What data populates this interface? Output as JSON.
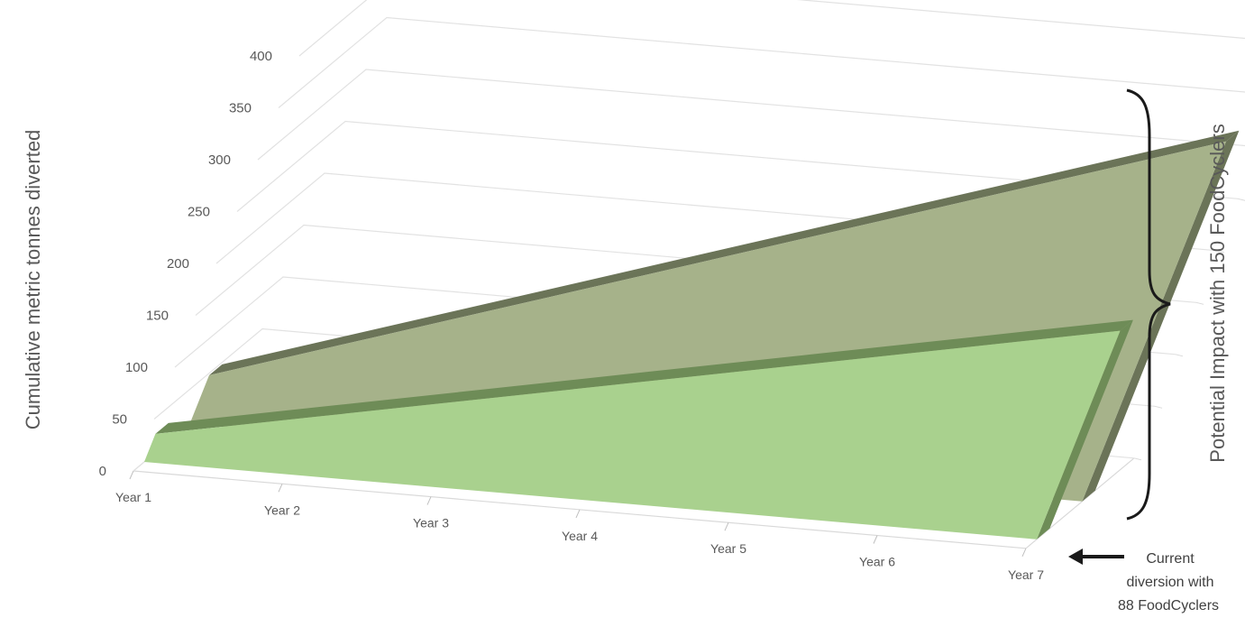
{
  "chart_data": {
    "type": "area",
    "view": "3d",
    "categories": [
      "Year 1",
      "Year 2",
      "Year 3",
      "Year 4",
      "Year 5",
      "Year 6",
      "Year 7"
    ],
    "series": [
      {
        "values": [
          27,
          56,
          85,
          114,
          143,
          172,
          201
        ],
        "color": "#A9D18E",
        "edge_color": "#6E8C57"
      },
      {
        "values": [
          47,
          97,
          147,
          197,
          247,
          297,
          347
        ],
        "color": "#A6B28A",
        "edge_color": "#6B7458"
      }
    ],
    "ylabel": "Cumulative metric tonnes diverted",
    "ylim": [
      0,
      400
    ],
    "yticks": [
      0,
      50,
      100,
      150,
      200,
      250,
      300,
      350,
      400
    ],
    "grid": true,
    "annotations": {
      "potential": "Potential Impact with  150 FoodCyclers",
      "current_lines": [
        "Current",
        "diversion with",
        "88 FoodCyclers"
      ]
    }
  }
}
